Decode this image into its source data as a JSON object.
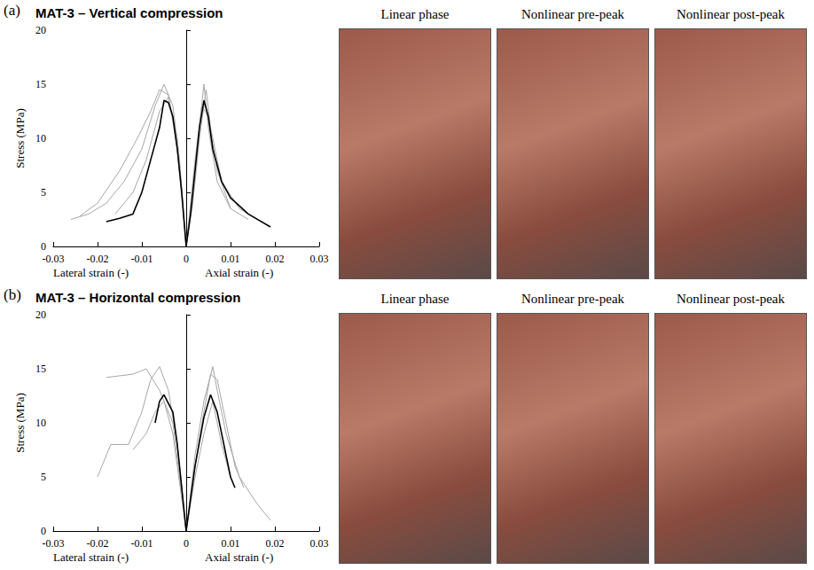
{
  "chart_data": [
    {
      "type": "line",
      "panel": "(a)",
      "title": "MAT-3 – Vertical compression",
      "ylabel": "Stress (MPa)",
      "xlabels": [
        "Lateral strain (-)",
        "Axial strain (-)"
      ],
      "xlim": [
        -0.03,
        0.03
      ],
      "xticks": [
        -0.03,
        -0.02,
        -0.01,
        0,
        0.01,
        0.02,
        0.03
      ],
      "ylim": [
        0,
        20
      ],
      "yticks": [
        0,
        5,
        10,
        15,
        20
      ],
      "grid": false,
      "photos": [
        "Linear phase",
        "Nonlinear pre-peak",
        "Nonlinear post-peak"
      ],
      "series": [
        {
          "color": "#a6a6a6",
          "values": [
            [
              -0.026,
              2.5
            ],
            [
              -0.022,
              3
            ],
            [
              -0.018,
              4
            ],
            [
              -0.014,
              6
            ],
            [
              -0.01,
              9
            ],
            [
              -0.007,
              13
            ],
            [
              -0.005,
              15
            ],
            [
              -0.003,
              13
            ],
            [
              -0.0015,
              8
            ],
            [
              0,
              0
            ],
            [
              0.0015,
              5
            ],
            [
              0.003,
              11
            ],
            [
              0.004,
              15
            ],
            [
              0.005,
              11
            ],
            [
              0.007,
              6
            ],
            [
              0.01,
              3.5
            ],
            [
              0.014,
              2.5
            ]
          ]
        },
        {
          "color": "#a6a6a6",
          "values": [
            [
              -0.024,
              2.8
            ],
            [
              -0.02,
              4
            ],
            [
              -0.015,
              7
            ],
            [
              -0.011,
              10
            ],
            [
              -0.008,
              12.5
            ],
            [
              -0.006,
              14.5
            ],
            [
              -0.004,
              14
            ],
            [
              -0.002,
              9
            ],
            [
              0,
              0
            ],
            [
              0.0015,
              4
            ],
            [
              0.003,
              10
            ],
            [
              0.0045,
              14.5
            ],
            [
              0.0055,
              11
            ],
            [
              0.008,
              6
            ],
            [
              0.012,
              3.5
            ],
            [
              0.016,
              2.5
            ]
          ]
        },
        {
          "color": "#a6a6a6",
          "values": [
            [
              -0.016,
              3
            ],
            [
              -0.012,
              5
            ],
            [
              -0.009,
              8
            ],
            [
              -0.006,
              12.5
            ],
            [
              -0.004,
              13.8
            ],
            [
              -0.002,
              10
            ],
            [
              0,
              0
            ],
            [
              0.002,
              8
            ],
            [
              0.0035,
              13
            ],
            [
              0.005,
              12
            ],
            [
              0.007,
              7
            ],
            [
              0.01,
              3.5
            ]
          ]
        },
        {
          "color": "#000000",
          "values": [
            [
              -0.018,
              2.3
            ],
            [
              -0.015,
              2.6
            ],
            [
              -0.012,
              3
            ],
            [
              -0.01,
              5
            ],
            [
              -0.008,
              8
            ],
            [
              -0.006,
              11
            ],
            [
              -0.005,
              13.5
            ],
            [
              -0.004,
              13.3
            ],
            [
              -0.003,
              12
            ],
            [
              -0.002,
              9
            ],
            [
              -0.001,
              5
            ],
            [
              0,
              0
            ],
            [
              0.001,
              3
            ],
            [
              0.002,
              7
            ],
            [
              0.003,
              11
            ],
            [
              0.004,
              13.5
            ],
            [
              0.005,
              12
            ],
            [
              0.006,
              9
            ],
            [
              0.008,
              6
            ],
            [
              0.01,
              4.5
            ],
            [
              0.014,
              3
            ],
            [
              0.019,
              1.8
            ]
          ]
        }
      ]
    },
    {
      "type": "line",
      "panel": "(b)",
      "title": "MAT-3 – Horizontal compression",
      "ylabel": "Stress (MPa)",
      "xlabels": [
        "Lateral strain (-)",
        "Axial strain (-)"
      ],
      "xlim": [
        -0.03,
        0.03
      ],
      "xticks": [
        -0.03,
        -0.02,
        -0.01,
        0,
        0.01,
        0.02,
        0.03
      ],
      "ylim": [
        0,
        20
      ],
      "yticks": [
        0,
        5,
        10,
        15,
        20
      ],
      "grid": false,
      "photos": [
        "Linear phase",
        "Nonlinear pre-peak",
        "Nonlinear post-peak"
      ],
      "series": [
        {
          "color": "#a6a6a6",
          "values": [
            [
              -0.02,
              5
            ],
            [
              -0.017,
              8
            ],
            [
              -0.013,
              8
            ],
            [
              -0.01,
              11
            ],
            [
              -0.008,
              14
            ],
            [
              -0.006,
              15.2
            ],
            [
              -0.004,
              13
            ],
            [
              -0.002,
              8
            ],
            [
              0,
              0
            ],
            [
              0.002,
              7
            ],
            [
              0.004,
              12
            ],
            [
              0.006,
              15.2
            ],
            [
              0.007,
              13
            ],
            [
              0.009,
              9
            ],
            [
              0.012,
              5
            ],
            [
              0.016,
              2.5
            ],
            [
              0.019,
              1
            ]
          ]
        },
        {
          "color": "#a6a6a6",
          "values": [
            [
              -0.018,
              14.2
            ],
            [
              -0.012,
              14.5
            ],
            [
              -0.009,
              15
            ],
            [
              -0.006,
              13
            ],
            [
              -0.003,
              10
            ],
            [
              0,
              0
            ],
            [
              0.002,
              6
            ],
            [
              0.004,
              11
            ],
            [
              0.0055,
              14.5
            ],
            [
              0.007,
              14
            ],
            [
              0.009,
              10
            ],
            [
              0.011,
              6
            ],
            [
              0.013,
              4
            ]
          ]
        },
        {
          "color": "#a6a6a6",
          "values": [
            [
              -0.012,
              7.5
            ],
            [
              -0.009,
              9
            ],
            [
              -0.007,
              11
            ],
            [
              -0.005,
              12
            ],
            [
              -0.003,
              9
            ],
            [
              0,
              0
            ],
            [
              0.002,
              5
            ],
            [
              0.004,
              9
            ],
            [
              0.006,
              12
            ],
            [
              0.008,
              8
            ],
            [
              0.01,
              5
            ]
          ]
        },
        {
          "color": "#000000",
          "values": [
            [
              -0.007,
              10
            ],
            [
              -0.006,
              12
            ],
            [
              -0.005,
              12.6
            ],
            [
              -0.003,
              11
            ],
            [
              -0.002,
              8
            ],
            [
              -0.001,
              4
            ],
            [
              0,
              0
            ],
            [
              0.001,
              3
            ],
            [
              0.002,
              6
            ],
            [
              0.004,
              10.5
            ],
            [
              0.0055,
              12.6
            ],
            [
              0.007,
              11
            ],
            [
              0.008,
              9
            ],
            [
              0.009,
              7
            ],
            [
              0.01,
              5
            ],
            [
              0.011,
              4
            ]
          ]
        }
      ]
    }
  ]
}
